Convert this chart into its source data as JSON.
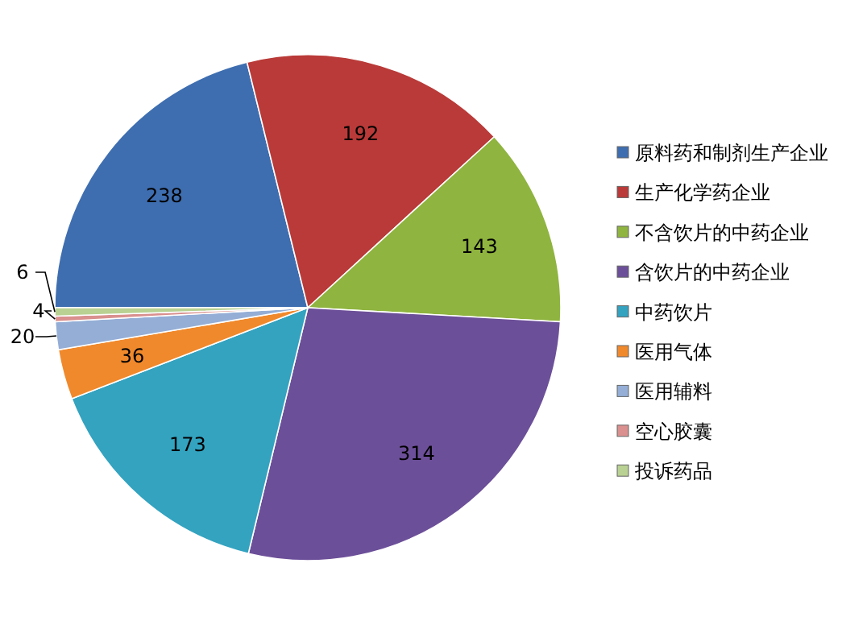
{
  "chart_data": {
    "type": "pie",
    "categories": [
      "原料药和制剂生产企业",
      "生产化学药企业",
      "不含饮片的中药企业",
      "含饮片的中药企业",
      "中药饮片",
      "医用气体",
      "医用辅料",
      "空心胶囊",
      "投诉药品"
    ],
    "values": [
      238,
      192,
      143,
      314,
      173,
      36,
      20,
      4,
      6
    ],
    "colors": [
      "#3e6eb0",
      "#b93a38",
      "#8fb43f",
      "#6c4f99",
      "#33a3c0",
      "#f0892c",
      "#94aed6",
      "#d9908e",
      "#b9d192"
    ],
    "data_labels": true,
    "legend": "right"
  }
}
